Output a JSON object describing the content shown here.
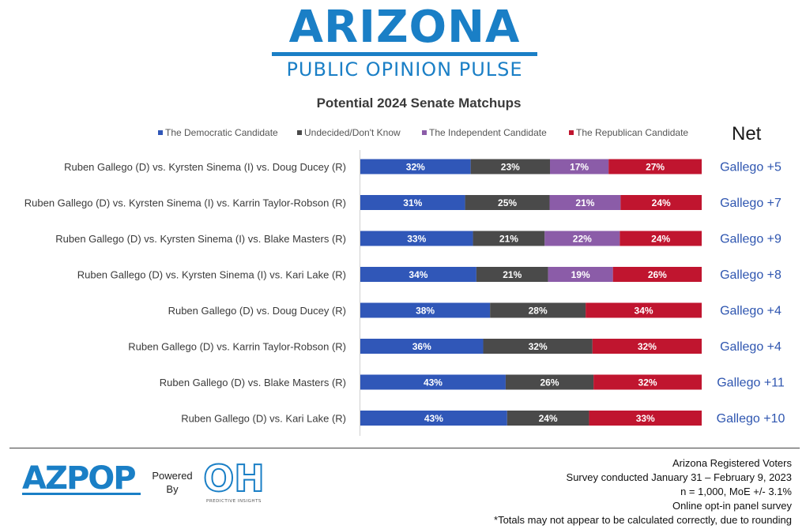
{
  "header": {
    "logo_title": "ARIZONA",
    "logo_subtitle": "PUBLIC OPINION PULSE"
  },
  "colors": {
    "democratic": "#3057b8",
    "undecided": "#4a4a4a",
    "independent": "#8b5ca8",
    "republican": "#c0152f",
    "brand": "#1a7fc6",
    "net_text": "#2f56b0"
  },
  "net_header": "Net",
  "chart_data": {
    "type": "bar",
    "orientation": "horizontal",
    "stacked": true,
    "title": "Potential 2024 Senate Matchups",
    "legend_position": "top",
    "categories": [
      "Ruben Gallego (D) vs. Kyrsten Sinema (I) vs. Doug Ducey (R)",
      "Ruben Gallego (D) vs. Kyrsten Sinema (I) vs. Karrin Taylor-Robson (R)",
      "Ruben Gallego (D) vs. Kyrsten Sinema (I) vs. Blake Masters (R)",
      "Ruben Gallego (D) vs. Kyrsten Sinema (I) vs. Kari Lake (R)",
      "Ruben Gallego (D) vs. Doug Ducey (R)",
      "Ruben Gallego (D) vs. Karrin Taylor-Robson (R)",
      "Ruben Gallego (D) vs. Blake Masters (R)",
      "Ruben Gallego (D) vs. Kari Lake (R)"
    ],
    "series": [
      {
        "name": "The Democratic Candidate",
        "color_key": "democratic",
        "values": [
          32,
          31,
          33,
          34,
          38,
          36,
          43,
          43
        ]
      },
      {
        "name": "Undecided/Don't Know",
        "color_key": "undecided",
        "values": [
          23,
          25,
          21,
          21,
          28,
          32,
          26,
          24
        ]
      },
      {
        "name": "The Independent Candidate",
        "color_key": "independent",
        "values": [
          17,
          21,
          22,
          19,
          null,
          null,
          null,
          null
        ]
      },
      {
        "name": "The Republican Candidate",
        "color_key": "republican",
        "values": [
          27,
          24,
          24,
          26,
          34,
          32,
          32,
          33
        ]
      }
    ],
    "value_suffix": "%",
    "net": [
      "Gallego +5",
      "Gallego +7",
      "Gallego +9",
      "Gallego +8",
      "Gallego +4",
      "Gallego +4",
      "Gallego +11",
      "Gallego +10"
    ]
  },
  "footer": {
    "azpop_logo": "AZPOP",
    "powered_by_line1": "Powered",
    "powered_by_line2": "By",
    "oh_logo": "OH",
    "oh_logo_subtitle": "PREDICTIVE INSIGHTS",
    "notes": [
      "Arizona Registered Voters",
      "Survey conducted January 31 – February 9, 2023",
      "n = 1,000, MoE +/- 3.1%",
      "Online opt-in panel survey",
      "*Totals may not appear to be calculated correctly, due to rounding"
    ]
  }
}
